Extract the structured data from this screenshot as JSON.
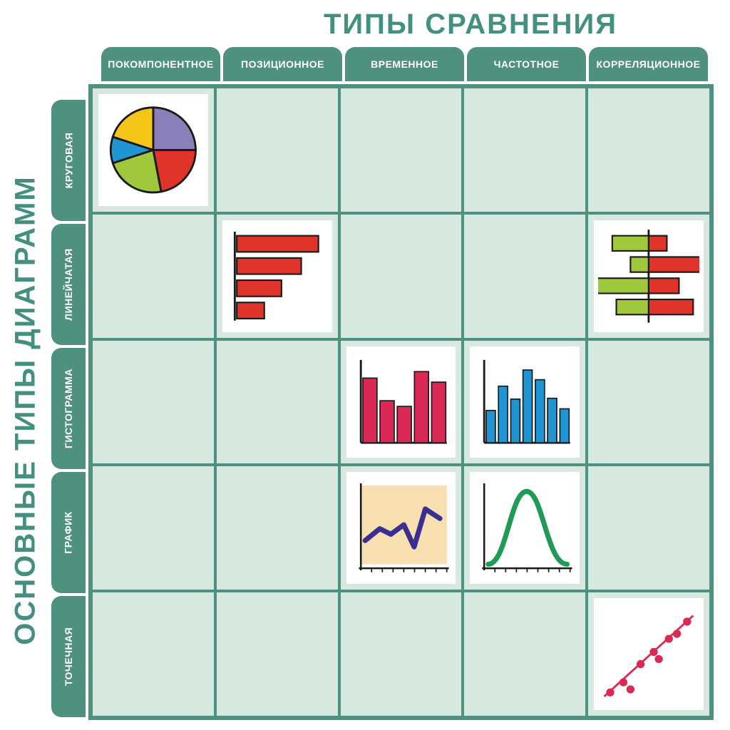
{
  "colors": {
    "teal": "#4e9180",
    "teal_title": "#449080",
    "panel_bg": "#d7e8de",
    "grid_border": "#4e9180",
    "white": "#ffffff",
    "black": "#1a1a1a"
  },
  "title_top": "ТИПЫ СРАВНЕНИЯ",
  "title_left": "ОСНОВНЫЕ ТИПЫ ДИАГРАММ",
  "title_fontsize": 40,
  "header_fontsize": 14,
  "columns": [
    "ПОКОМПОНЕНТНОЕ",
    "ПОЗИЦИОННОЕ",
    "ВРЕМЕННОЕ",
    "ЧАСТОТНОЕ",
    "КОРРЕЛЯЦИОННОЕ"
  ],
  "rows": [
    "КРУГОВАЯ",
    "ЛИНЕЙЧАТАЯ",
    "ГИСТОГРАММА",
    "ГРАФИК",
    "ТОЧЕЧНАЯ"
  ],
  "cells": {
    "pie": {
      "row": 0,
      "col": 0,
      "type": "pie",
      "slices": [
        {
          "value": 25,
          "color": "#8a7fb9"
        },
        {
          "value": 22,
          "color": "#e0342b"
        },
        {
          "value": 23,
          "color": "#a0c83c"
        },
        {
          "value": 10,
          "color": "#1f96d3"
        },
        {
          "value": 20,
          "color": "#f6c518"
        }
      ],
      "stroke": "#1a1a1a",
      "stroke_width": 2
    },
    "hbar": {
      "row": 1,
      "col": 1,
      "type": "hbar",
      "bars": [
        95,
        75,
        52,
        32
      ],
      "bar_color": "#e0342b",
      "stroke": "#1a1a1a",
      "axis_left": true
    },
    "divbar": {
      "row": 1,
      "col": 4,
      "type": "diverging_hbar",
      "left_bars": [
        {
          "w": 36,
          "c": "#a0c83c"
        },
        {
          "w": 18,
          "c": "#a0c83c"
        },
        {
          "w": 54,
          "c": "#a0c83c"
        },
        {
          "w": 32,
          "c": "#a0c83c"
        }
      ],
      "right_bars": [
        {
          "w": 18,
          "c": "#e0342b"
        },
        {
          "w": 52,
          "c": "#e0342b"
        },
        {
          "w": 30,
          "c": "#e0342b"
        },
        {
          "w": 44,
          "c": "#e0342b"
        }
      ],
      "stroke": "#1a1a1a"
    },
    "vbar_red": {
      "row": 2,
      "col": 2,
      "type": "vbar",
      "values": [
        80,
        52,
        45,
        88,
        75
      ],
      "bar_color": "#db2955",
      "axis_color": "#1a1a1a"
    },
    "vbar_blue": {
      "row": 2,
      "col": 3,
      "type": "vbar",
      "values": [
        40,
        70,
        54,
        90,
        78,
        55,
        42
      ],
      "bar_color": "#1f96d3",
      "axis_color": "#1a1a1a"
    },
    "line": {
      "row": 3,
      "col": 2,
      "type": "line",
      "points": [
        [
          5,
          70
        ],
        [
          22,
          55
        ],
        [
          35,
          62
        ],
        [
          50,
          50
        ],
        [
          62,
          78
        ],
        [
          75,
          30
        ],
        [
          92,
          42
        ]
      ],
      "line_color": "#3a2e8f",
      "line_width": 5,
      "plot_bg": "#f7dfb1",
      "axis_color": "#1a1a1a",
      "ticks": 8
    },
    "bell": {
      "row": 3,
      "col": 3,
      "type": "bell",
      "curve_color": "#1f9b55",
      "line_width": 5,
      "axis_color": "#1a1a1a",
      "ticks": 8
    },
    "scatter": {
      "row": 4,
      "col": 4,
      "type": "scatter",
      "points": [
        [
          12,
          88
        ],
        [
          25,
          78
        ],
        [
          32,
          85
        ],
        [
          42,
          60
        ],
        [
          55,
          48
        ],
        [
          60,
          55
        ],
        [
          70,
          35
        ],
        [
          78,
          30
        ],
        [
          88,
          18
        ]
      ],
      "dot_color": "#db2955",
      "dot_r": 4,
      "trend": [
        [
          6,
          92
        ],
        [
          94,
          12
        ]
      ],
      "trend_color": "#db2955",
      "trend_width": 2
    }
  }
}
